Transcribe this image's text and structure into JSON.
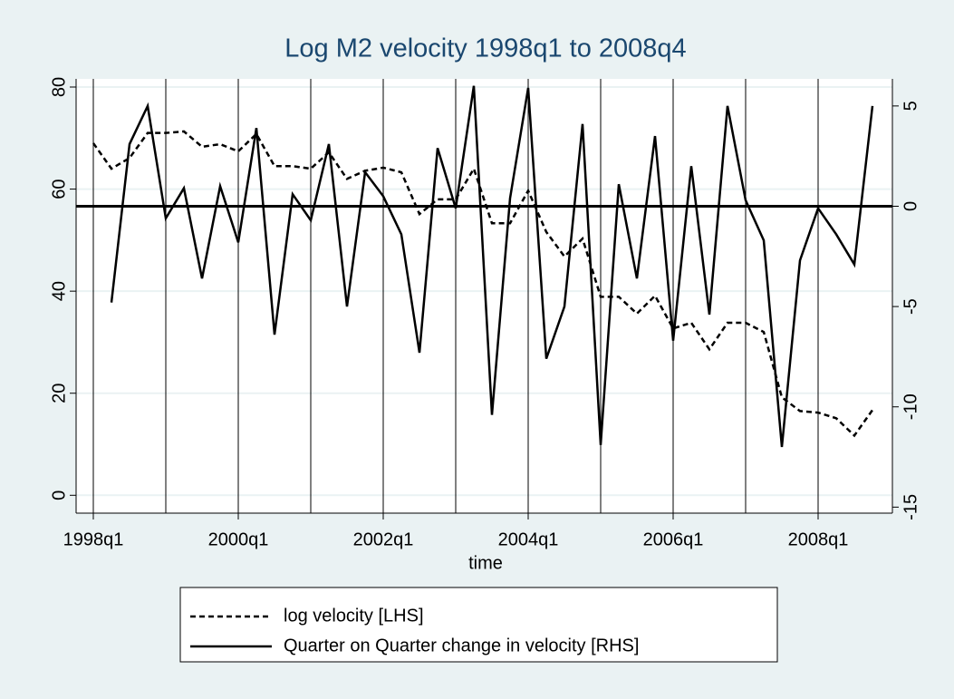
{
  "chart_data": {
    "type": "line",
    "title": "Log M2 velocity 1998q1 to 2008q4",
    "xlabel": "time",
    "categories": [
      "1998q1",
      null,
      null,
      null,
      null,
      null,
      null,
      null,
      "2000q1",
      null,
      null,
      null,
      null,
      null,
      null,
      null,
      "2002q1",
      null,
      null,
      null,
      null,
      null,
      null,
      null,
      "2004q1",
      null,
      null,
      null,
      null,
      null,
      null,
      null,
      "2006q1",
      null,
      null,
      null,
      null,
      null,
      null,
      null,
      "2008q1",
      null,
      null,
      null
    ],
    "series": [
      {
        "name": "log velocity [LHS]",
        "color": "#000000",
        "dash": "dashed",
        "axis": "y",
        "values": [
          69.0,
          64,
          66.1,
          71,
          71,
          71.3,
          68.3,
          68.8,
          67.4,
          70.8,
          64.5,
          64.5,
          64,
          67.2,
          62,
          63.6,
          64.2,
          63.3,
          55.1,
          58,
          58,
          64,
          53.3,
          53.3,
          59.7,
          51.6,
          46.8,
          50.3,
          38.9,
          38.9,
          35.6,
          39.1,
          32.7,
          33.8,
          28.6,
          33.8,
          33.8,
          32,
          19.2,
          16.5,
          16.2,
          15.1,
          11.7,
          16.7
        ]
      },
      {
        "name": "Quarter on Quarter change in velocity [RHS]",
        "color": "#000000",
        "dash": "solid",
        "axis": "y2",
        "values": [
          null,
          -4.8,
          3.1,
          5.0,
          -0.6,
          0.9,
          -3.6,
          1.0,
          -1.8,
          3.9,
          -6.4,
          0.6,
          -0.7,
          3.1,
          -5.0,
          1.7,
          0.5,
          -1.4,
          -7.3,
          2.9,
          -0.1,
          6.0,
          -10.4,
          0.4,
          5.9,
          -7.6,
          -5.0,
          4.1,
          -11.9,
          1.1,
          -3.6,
          3.5,
          -6.7,
          2.0,
          -5.4,
          5.0,
          0.3,
          -1.7,
          -12.0,
          -2.7,
          -0.1,
          -1.4,
          -2.9,
          5.0
        ]
      }
    ],
    "ylim": [
      -3.5,
      81.6
    ],
    "yticks": [
      0,
      20,
      40,
      60,
      80
    ],
    "y2lim": [
      -15.3,
      6.35
    ],
    "y2ticks": [
      -15,
      -10,
      -5,
      0,
      5
    ],
    "refline": {
      "axis": "y2",
      "value": 0
    },
    "grid": true
  }
}
